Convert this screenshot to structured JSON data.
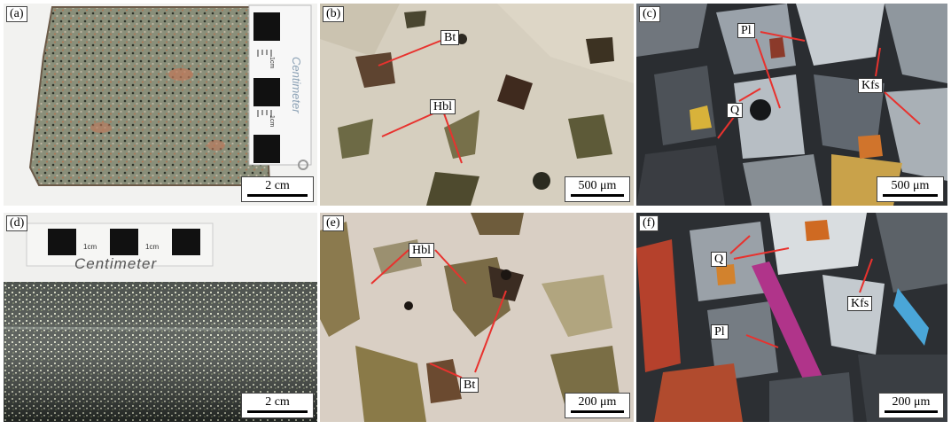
{
  "panels": {
    "a": {
      "label": "(a)",
      "scale": "2 cm"
    },
    "b": {
      "label": "(b)",
      "scale": "500 μm",
      "tags": {
        "bt": "Bt",
        "hbl": "Hbl"
      }
    },
    "c": {
      "label": "(c)",
      "scale": "500 μm",
      "tags": {
        "pl": "Pl",
        "kfs": "Kfs",
        "q": "Q"
      }
    },
    "d": {
      "label": "(d)",
      "scale": "2 cm"
    },
    "e": {
      "label": "(e)",
      "scale": "200 μm",
      "tags": {
        "hbl": "Hbl",
        "bt": "Bt"
      }
    },
    "f": {
      "label": "(f)",
      "scale": "200 μm",
      "tags": {
        "q": "Q",
        "kfs": "Kfs",
        "pl": "Pl"
      }
    }
  },
  "ruler": {
    "word": "Centimeter",
    "unit_label": "1cm"
  }
}
